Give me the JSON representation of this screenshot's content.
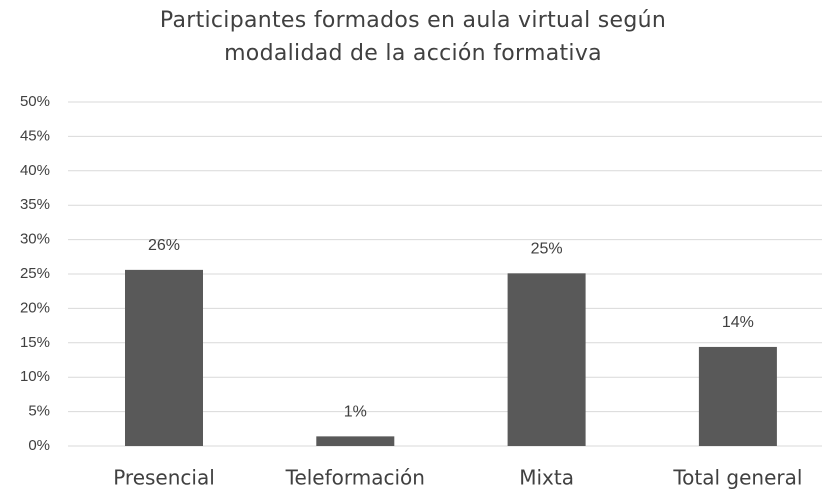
{
  "chart_data": {
    "type": "bar",
    "title": "Participantes formados en aula virtual según modalidad de la acción formativa",
    "categories": [
      "Presencial",
      "Teleformación",
      "Mixta",
      "Total general"
    ],
    "values": [
      25.6,
      1.4,
      25.1,
      14.4
    ],
    "value_labels": [
      "26%",
      "1%",
      "25%",
      "14%"
    ],
    "color": "#595959",
    "ylim": [
      0,
      50
    ],
    "yticks": [
      {
        "value": 0,
        "label": "0%"
      },
      {
        "value": 5,
        "label": "5%"
      },
      {
        "value": 10,
        "label": "10%"
      },
      {
        "value": 15,
        "label": "15%"
      },
      {
        "value": 20,
        "label": "20%"
      },
      {
        "value": 25,
        "label": "25%"
      },
      {
        "value": 30,
        "label": "30%"
      },
      {
        "value": 35,
        "label": "35%"
      },
      {
        "value": 40,
        "label": "40%"
      },
      {
        "value": 45,
        "label": "45%"
      },
      {
        "value": 50,
        "label": "50%"
      }
    ],
    "grid": true
  }
}
